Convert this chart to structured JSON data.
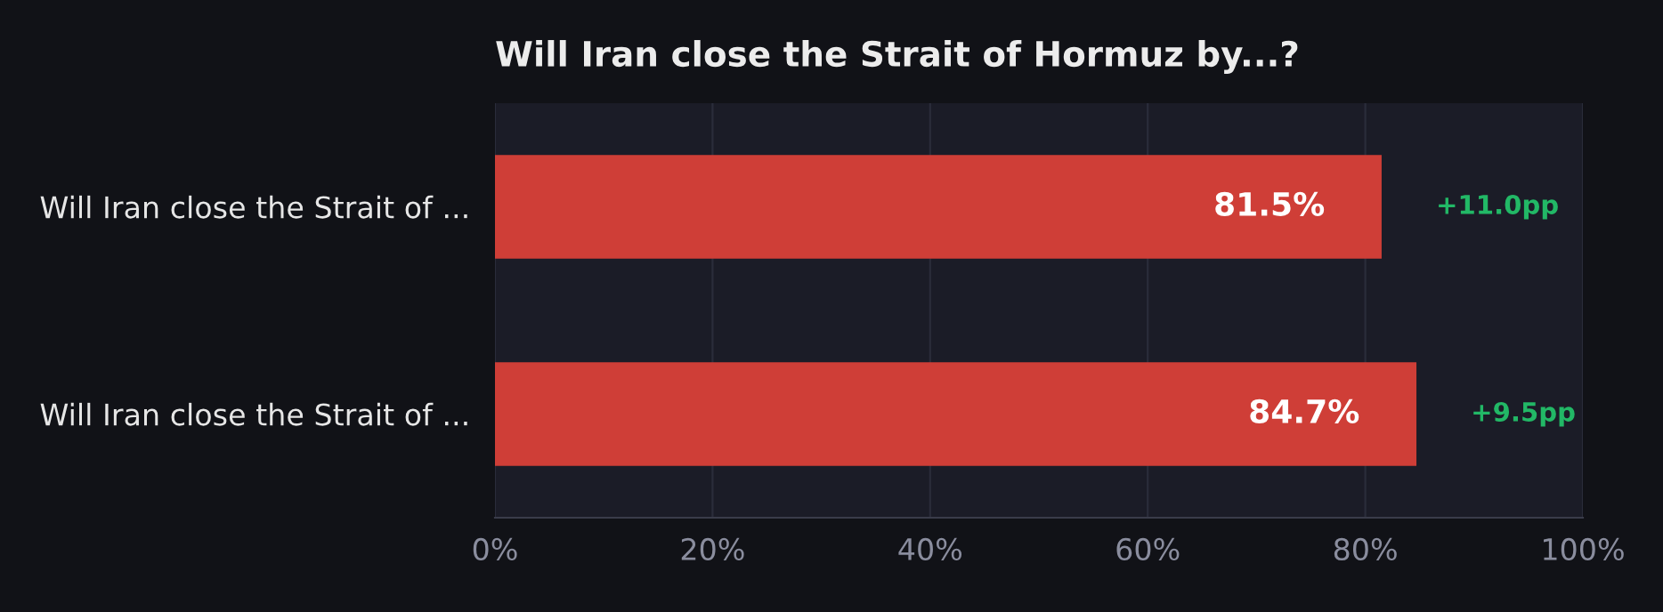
{
  "chart_data": {
    "type": "bar",
    "orientation": "horizontal",
    "title": "Will Iran close the Strait of Hormuz by...?",
    "categories": [
      "Will Iran close the Strait of ...",
      "Will Iran close the Strait of ..."
    ],
    "series": [
      {
        "color": "#cf3e37",
        "values": [
          81.5,
          84.7
        ],
        "value_labels": [
          "81.5%",
          "84.7%"
        ]
      }
    ],
    "xlim": [
      0,
      100
    ],
    "xticks": [
      {
        "value": 0,
        "label": "0%"
      },
      {
        "value": 20,
        "label": "20%"
      },
      {
        "value": 40,
        "label": "40%"
      },
      {
        "value": 60,
        "label": "60%"
      },
      {
        "value": 80,
        "label": "80%"
      },
      {
        "value": 100,
        "label": "100%"
      }
    ],
    "grid": "x",
    "annotations": [
      {
        "text": "+11.0pp",
        "x": 81.5
      },
      {
        "text": "+9.5pp",
        "x": 84.7
      }
    ]
  }
}
